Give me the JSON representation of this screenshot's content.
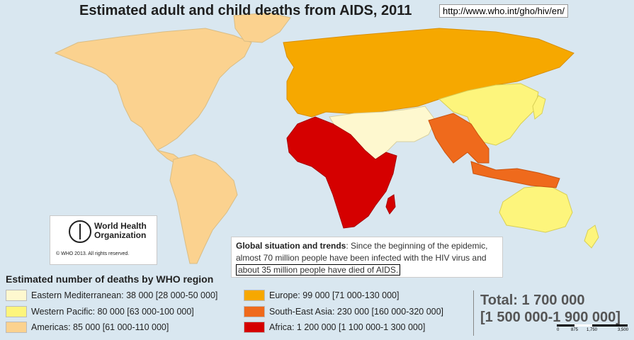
{
  "title": "Estimated adult and child deaths from AIDS, 2011",
  "source_url": "http://www.who.int/gho/hiv/en/",
  "who_logo": {
    "line1": "World Health",
    "line2": "Organization",
    "copyright": "© WHO 2013. All rights reserved."
  },
  "global": {
    "heading": "Global situation and trends",
    "text": ": Since the beginning of the epidemic, almost 70 million people have been infected with the HIV virus and ",
    "highlight": "about 35 million people have died of AIDS."
  },
  "legend": {
    "title": "Estimated number of deaths by WHO region",
    "items": [
      {
        "label": "Eastern Mediterranean: 38 000 [28 000-50 000]",
        "color": "#fef8cf"
      },
      {
        "label": "Western Pacific: 80 000 [63 000-100 000]",
        "color": "#fdf57c"
      },
      {
        "label": "Americas: 85 000 [61 000-110 000]",
        "color": "#fbd28f"
      },
      {
        "label": "Europe: 99 000 [71 000-130 000]",
        "color": "#f6a800"
      },
      {
        "label": "South-East Asia: 230 000 [160 000-320 000]",
        "color": "#ef6a1c"
      },
      {
        "label": "Africa: 1 200 000 [1 100 000-1 300 000]",
        "color": "#d50000"
      }
    ]
  },
  "total": {
    "line1": "Total: 1 700 000",
    "line2": "[1 500 000-1 900 000]"
  },
  "scale": {
    "labels": [
      "0",
      "875",
      "1,750",
      "3,500"
    ]
  },
  "colors": {
    "ocean": "#d9e7f0",
    "eastern_mediterranean": "#fef8cf",
    "western_pacific": "#fdf57c",
    "americas": "#fbd28f",
    "europe": "#f6a800",
    "south_east_asia": "#ef6a1c",
    "africa": "#d50000"
  }
}
